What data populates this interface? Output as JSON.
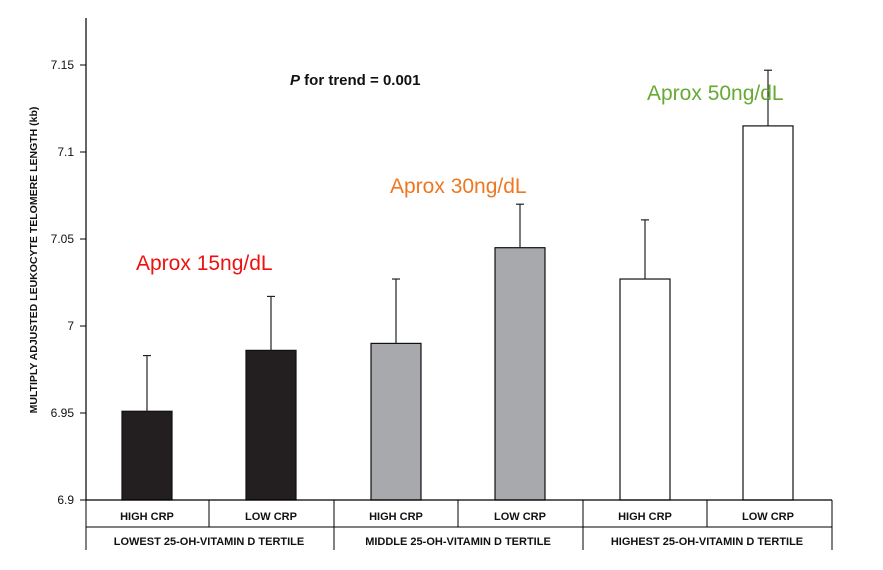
{
  "chart_data": {
    "type": "bar",
    "ylabel": "MULTIPLY ADJUSTED LEUKOCYTE TELOMERE LENGTH (kb)",
    "ylim": [
      6.9,
      7.16
    ],
    "yticks": [
      "6.9",
      "6.95",
      "7",
      "7.05",
      "7.1",
      "7.15"
    ],
    "categories": [
      "HIGH CRP",
      "LOW CRP",
      "HIGH CRP",
      "LOW CRP",
      "HIGH CRP",
      "LOW CRP"
    ],
    "values": [
      6.951,
      6.986,
      6.99,
      7.045,
      7.027,
      7.115
    ],
    "error_upper": [
      6.983,
      7.017,
      7.027,
      7.07,
      7.061,
      7.147
    ],
    "bar_colors": [
      "#231f20",
      "#231f20",
      "#a7a9ac",
      "#a7a9ac",
      "#ffffff",
      "#ffffff"
    ],
    "groups": [
      {
        "label": "LOWEST 25-OH-VITAMIN D TERTILE"
      },
      {
        "label": "MIDDLE 25-OH-VITAMIN D TERTILE"
      },
      {
        "label": "HIGHEST 25-OH-VITAMIN D TERTILE"
      }
    ],
    "trend_label": {
      "prefix": "P",
      "rest": " for trend = 0.001"
    },
    "annotations": [
      {
        "text": "Aprox 15ng/dL",
        "color": "#ee1111"
      },
      {
        "text": "Aprox 30ng/dL",
        "color": "#ee7722"
      },
      {
        "text": "Aprox 50ng/dL",
        "color": "#66aa33"
      }
    ],
    "grid": false,
    "legend": "none"
  }
}
